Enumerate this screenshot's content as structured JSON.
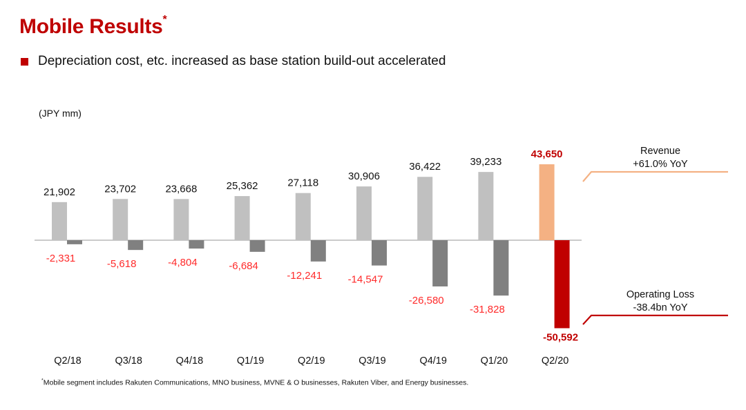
{
  "page": {
    "title": "Mobile Results",
    "title_marker": "*",
    "bullet": "Depreciation cost, etc. increased as base station build-out accelerated",
    "unit": "(JPY mm)",
    "footnote_marker": "*",
    "footnote": "Mobile segment includes Rakuten Communications, MNO business, MVNE & O businesses, Rakuten Viber, and Energy businesses."
  },
  "chart_data": {
    "type": "bar",
    "title": "Mobile Results",
    "ylabel": "(JPY mm)",
    "categories": [
      "Q2/18",
      "Q3/18",
      "Q4/18",
      "Q1/19",
      "Q2/19",
      "Q3/19",
      "Q4/19",
      "Q1/20",
      "Q2/20"
    ],
    "series": [
      {
        "name": "Revenue",
        "values": [
          21902,
          23702,
          23668,
          25362,
          27118,
          30906,
          36422,
          39233,
          43650
        ],
        "labels": [
          "21,902",
          "23,702",
          "23,668",
          "25,362",
          "27,118",
          "30,906",
          "36,422",
          "39,233",
          "43,650"
        ],
        "color": "#c0c0c0",
        "highlight_color": "#f4b183",
        "label_color": "#111111",
        "highlight_label_color": "#c00000"
      },
      {
        "name": "Operating Loss",
        "values": [
          -2331,
          -5618,
          -4804,
          -6684,
          -12241,
          -14547,
          -26580,
          -31828,
          -50592
        ],
        "labels": [
          "-2,331",
          "-5,618",
          "-4,804",
          "-6,684",
          "-12,241",
          "-14,547",
          "-26,580",
          "-31,828",
          "-50,592"
        ],
        "color": "#808080",
        "highlight_color": "#c00000",
        "label_color": "#ff2a2a",
        "highlight_label_color": "#c00000"
      }
    ],
    "highlight_index": 8,
    "callouts": [
      {
        "series": "Revenue",
        "line1": "Revenue",
        "line2": "+61.0% YoY",
        "color": "#f4b183"
      },
      {
        "series": "Operating Loss",
        "line1": "Operating Loss",
        "line2": "-38.4bn YoY",
        "color": "#c00000"
      }
    ],
    "axis_color": "#aaaaaa",
    "ylim": [
      -51000,
      44000
    ]
  }
}
